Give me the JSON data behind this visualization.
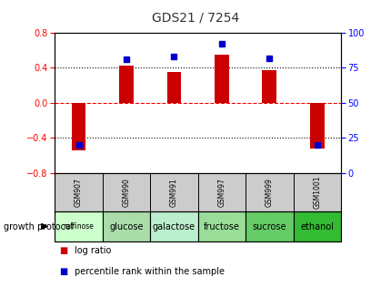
{
  "title": "GDS21 / 7254",
  "samples": [
    "GSM907",
    "GSM990",
    "GSM991",
    "GSM997",
    "GSM999",
    "GSM1001"
  ],
  "protocols": [
    "raffinose",
    "glucose",
    "galactose",
    "fructose",
    "sucrose",
    "ethanol"
  ],
  "protocol_colors": [
    "#ccffcc",
    "#aaddaa",
    "#bbeecc",
    "#99dd99",
    "#66cc66",
    "#33bb33"
  ],
  "log_ratios": [
    -0.54,
    0.43,
    0.35,
    0.55,
    0.37,
    -0.52
  ],
  "percentile_ranks": [
    20,
    81,
    83,
    92,
    82,
    20
  ],
  "bar_color": "#cc0000",
  "dot_color": "#0000cc",
  "ylim_left": [
    -0.8,
    0.8
  ],
  "ylim_right": [
    0,
    100
  ],
  "yticks_left": [
    -0.8,
    -0.4,
    0,
    0.4,
    0.8
  ],
  "yticks_right": [
    0,
    25,
    50,
    75,
    100
  ],
  "hline_positions": [
    -0.4,
    0.0,
    0.4
  ],
  "hline_styles": [
    "dotted",
    "dashed_red",
    "dotted"
  ],
  "legend_items": [
    "log ratio",
    "percentile rank within the sample"
  ],
  "growth_protocol_label": "growth protocol",
  "header_bg": "#cccccc",
  "plot_bg": "#ffffff",
  "title_color": "#333333",
  "title_fontsize": 10,
  "bar_width": 0.3
}
